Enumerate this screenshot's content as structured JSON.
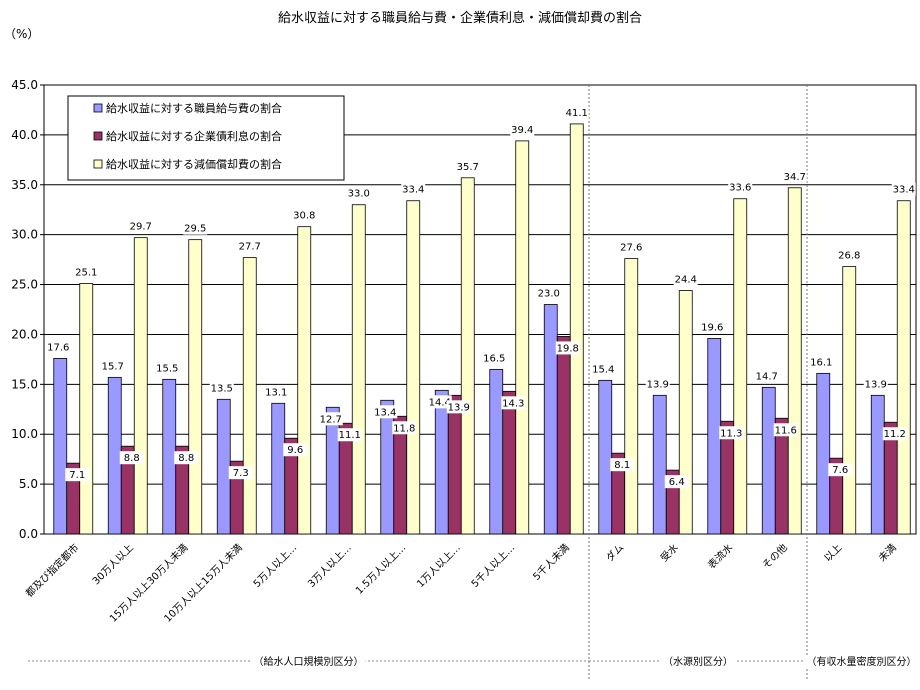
{
  "chart_data": {
    "type": "bar",
    "title": "給水収益に対する職員給与費・企業債利息・減価償却費の割合",
    "ylabel": "（%）",
    "ylim": [
      0,
      45
    ],
    "yticks": [
      "0.0",
      "5.0",
      "10.0",
      "15.0",
      "20.0",
      "25.0",
      "30.0",
      "35.0",
      "40.0",
      "45.0"
    ],
    "grid": true,
    "legend_position": "top-left",
    "categories": [
      "都及び指定都市",
      "30万人以上",
      "15万人以上30万人未満",
      "10万人以上15万人未満",
      "5万人以上…",
      "3万人以上…",
      "1.5万人以上…",
      "1万人以上…",
      "5千人以上…",
      "5千人未満",
      "ダム",
      "受水",
      "表流水",
      "その他",
      "以上",
      "未満"
    ],
    "series": [
      {
        "name": "給水収益に対する職員給与費の割合",
        "color": "#9999ff",
        "values": [
          17.6,
          15.7,
          15.5,
          13.5,
          13.1,
          12.7,
          13.4,
          14.4,
          16.5,
          23.0,
          15.4,
          13.9,
          19.6,
          14.7,
          16.1,
          13.9
        ]
      },
      {
        "name": "給水収益に対する企業債利息の割合",
        "color": "#993366",
        "values": [
          7.1,
          8.8,
          8.8,
          7.3,
          9.6,
          11.1,
          11.8,
          13.9,
          14.3,
          19.8,
          8.1,
          6.4,
          11.3,
          11.6,
          7.6,
          11.2
        ]
      },
      {
        "name": "給水収益に対する減価償却費の割合",
        "color": "#ffffcc",
        "values": [
          25.1,
          29.7,
          29.5,
          27.7,
          30.8,
          33.0,
          33.4,
          35.7,
          39.4,
          41.1,
          27.6,
          24.4,
          33.6,
          34.7,
          26.8,
          33.4
        ]
      }
    ],
    "groups": [
      {
        "label": "（給水人口規模別区分）",
        "count": 10
      },
      {
        "label": "（水源別区分）",
        "count": 4
      },
      {
        "label": "（有収水量密度別区分）",
        "count": 2
      }
    ]
  }
}
